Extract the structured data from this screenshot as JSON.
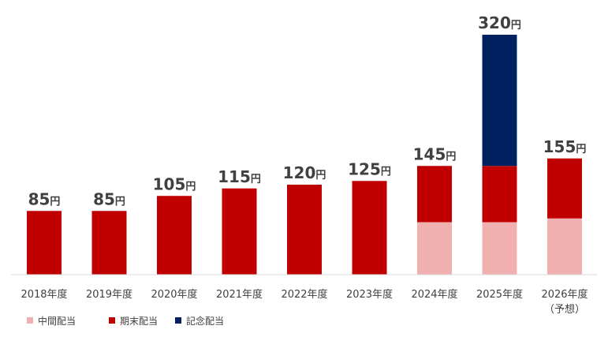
{
  "chart_data": {
    "type": "bar",
    "stacked": true,
    "categories": [
      "2018年度",
      "2019年度",
      "2020年度",
      "2021年度",
      "2022年度",
      "2023年度",
      "2024年度",
      "2025年度",
      "2026年度"
    ],
    "category_notes": [
      "",
      "",
      "",
      "",
      "",
      "",
      "",
      "",
      "（予想）"
    ],
    "series": [
      {
        "name": "中間配当",
        "color": "#f0b0b0",
        "values": [
          0,
          0,
          0,
          0,
          0,
          0,
          70,
          70,
          75
        ]
      },
      {
        "name": "期末配当",
        "color": "#c00000",
        "values": [
          85,
          85,
          105,
          115,
          120,
          125,
          75,
          75,
          80
        ]
      },
      {
        "name": "記念配当",
        "color": "#002060",
        "values": [
          0,
          0,
          0,
          0,
          0,
          0,
          0,
          175,
          0
        ]
      }
    ],
    "totals": [
      85,
      85,
      105,
      115,
      120,
      125,
      145,
      320,
      155
    ],
    "total_unit": "円",
    "ylim": [
      0,
      320
    ],
    "grid": false,
    "legend_position": "bottom-left"
  }
}
